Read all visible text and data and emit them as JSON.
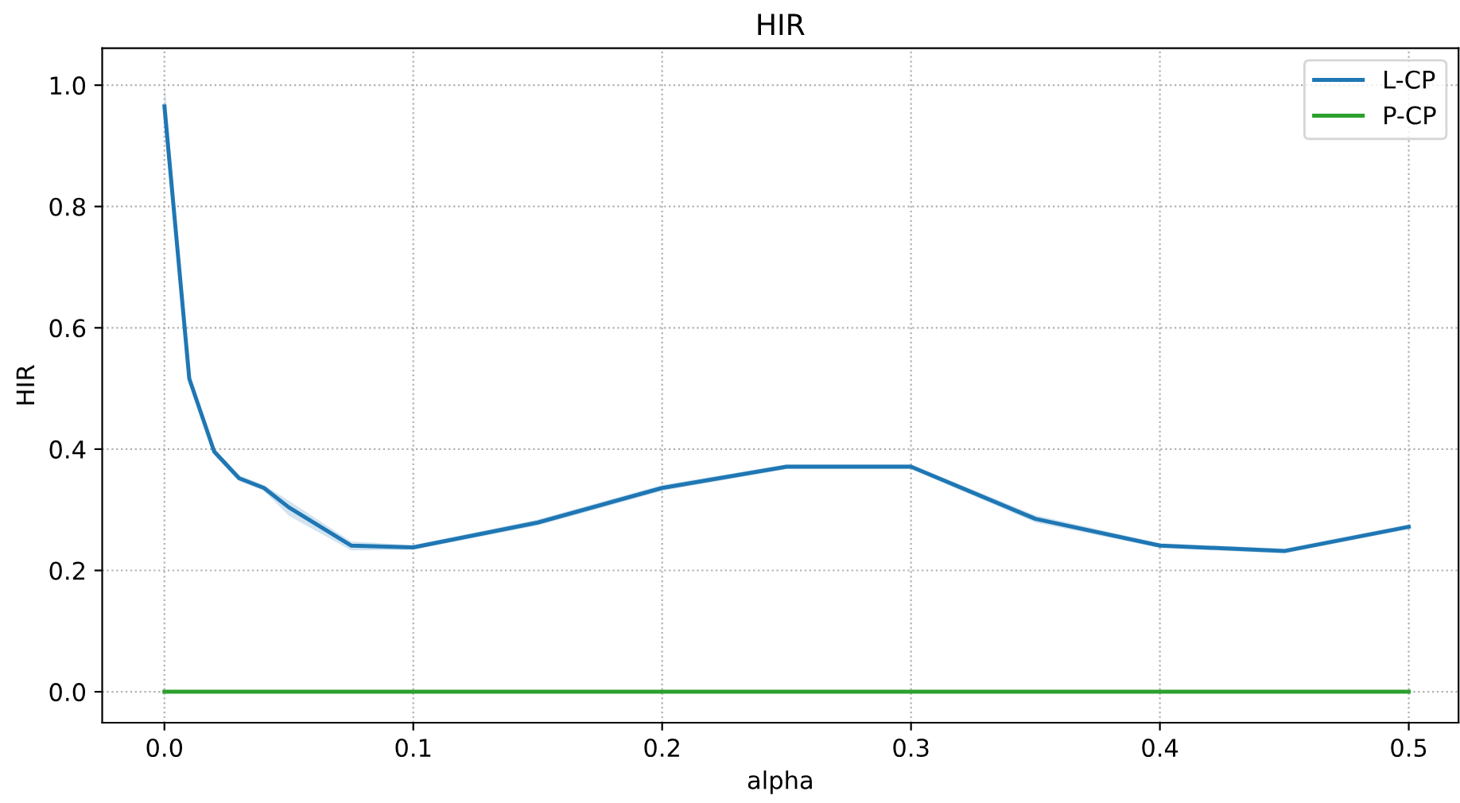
{
  "chart_data": {
    "type": "line",
    "title": "HIR",
    "xlabel": "alpha",
    "ylabel": "HIR",
    "x": [
      0,
      0.01,
      0.02,
      0.03,
      0.04,
      0.05,
      0.075,
      0.1,
      0.15,
      0.2,
      0.25,
      0.3,
      0.35,
      0.4,
      0.45,
      0.5
    ],
    "series": [
      {
        "name": "L-CP",
        "color": "#1f77b4",
        "values": [
          0.965,
          0.516,
          0.396,
          0.352,
          0.336,
          0.304,
          0.241,
          0.238,
          0.279,
          0.336,
          0.371,
          0.371,
          0.285,
          0.241,
          0.232,
          0.272
        ],
        "lower": [
          0.93,
          0.51,
          0.39,
          0.347,
          0.331,
          0.29,
          0.233,
          0.234,
          0.274,
          0.331,
          0.367,
          0.367,
          0.279,
          0.237,
          0.228,
          0.268
        ],
        "upper": [
          1.01,
          0.522,
          0.402,
          0.357,
          0.341,
          0.315,
          0.248,
          0.242,
          0.284,
          0.341,
          0.375,
          0.375,
          0.291,
          0.245,
          0.236,
          0.276
        ]
      },
      {
        "name": "P-CP",
        "color": "#2ca02c",
        "values": [
          0,
          0,
          0,
          0,
          0,
          0,
          0,
          0,
          0,
          0,
          0,
          0,
          0,
          0,
          0,
          0
        ]
      }
    ],
    "xlim": [
      -0.025,
      0.52
    ],
    "ylim": [
      -0.051,
      1.061
    ],
    "xticks": [
      {
        "value": 0,
        "label": "0.0"
      },
      0.1,
      0.2,
      0.3,
      0.4,
      0.5
    ],
    "yticks": [
      {
        "value": 0,
        "label": "0.0"
      },
      0.2,
      0.4,
      0.6,
      0.8,
      {
        "value": 1,
        "label": "1.0"
      }
    ],
    "grid": true,
    "legend": "top right",
    "marker": "none",
    "line_style": "solid"
  }
}
